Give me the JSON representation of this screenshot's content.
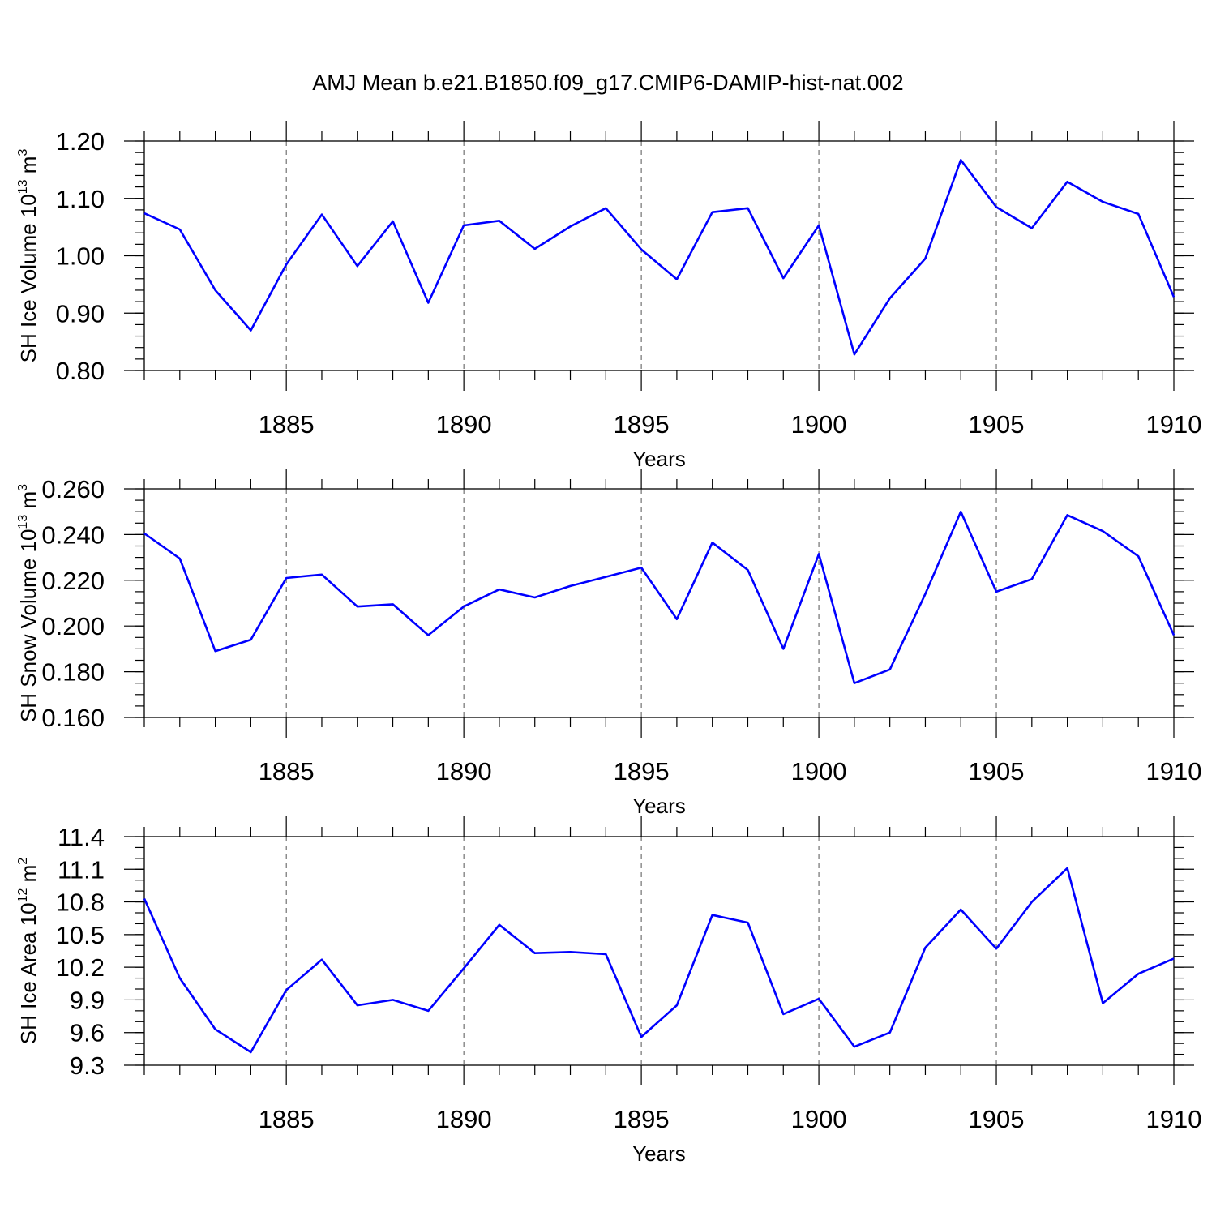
{
  "title": "AMJ Mean b.e21.B1850.f09_g17.CMIP6-DAMIP-hist-nat.002",
  "colors": {
    "line": "#0000ff"
  },
  "chart_data": [
    {
      "type": "line",
      "ylabel": {
        "text": "SH Ice Volume 10",
        "sup": "13",
        "unit": " m",
        "unit_sup": "3"
      },
      "xlabel": "Years",
      "xlim": [
        1881,
        1910
      ],
      "ylim": [
        0.8,
        1.2
      ],
      "yticks": [
        "0.80",
        "0.90",
        "1.00",
        "1.10",
        "1.20"
      ],
      "yminor": 0.02,
      "xticks": [
        "1885",
        "1890",
        "1895",
        "1900",
        "1905",
        "1910"
      ],
      "grid": "vertical-dashed-at-major-ticks",
      "x": [
        1881,
        1882,
        1883,
        1884,
        1885,
        1886,
        1887,
        1888,
        1889,
        1890,
        1891,
        1892,
        1893,
        1894,
        1895,
        1896,
        1897,
        1898,
        1899,
        1900,
        1901,
        1902,
        1903,
        1904,
        1905,
        1906,
        1907,
        1908,
        1909,
        1910
      ],
      "values": [
        1.074,
        1.046,
        0.94,
        0.87,
        0.985,
        1.072,
        0.982,
        1.06,
        0.918,
        1.053,
        1.061,
        1.012,
        1.051,
        1.083,
        1.011,
        0.959,
        1.076,
        1.083,
        0.961,
        1.053,
        0.828,
        0.926,
        0.995,
        1.167,
        1.085,
        1.048,
        1.129,
        1.094,
        1.073,
        0.928
      ]
    },
    {
      "type": "line",
      "ylabel": {
        "text": "SH Snow Volume 10",
        "sup": "13",
        "unit": " m",
        "unit_sup": "3"
      },
      "xlabel": "Years",
      "xlim": [
        1881,
        1910
      ],
      "ylim": [
        0.16,
        0.26
      ],
      "yticks": [
        "0.160",
        "0.180",
        "0.200",
        "0.220",
        "0.240",
        "0.260"
      ],
      "yminor": 0.005,
      "xticks": [
        "1885",
        "1890",
        "1895",
        "1900",
        "1905",
        "1910"
      ],
      "grid": "vertical-dashed-at-major-ticks",
      "x": [
        1881,
        1882,
        1883,
        1884,
        1885,
        1886,
        1887,
        1888,
        1889,
        1890,
        1891,
        1892,
        1893,
        1894,
        1895,
        1896,
        1897,
        1898,
        1899,
        1900,
        1901,
        1902,
        1903,
        1904,
        1905,
        1906,
        1907,
        1908,
        1909,
        1910
      ],
      "values": [
        0.2405,
        0.2295,
        0.189,
        0.194,
        0.221,
        0.2225,
        0.2085,
        0.2095,
        0.196,
        0.2085,
        0.216,
        0.2125,
        0.2175,
        0.2215,
        0.2255,
        0.203,
        0.2365,
        0.2245,
        0.19,
        0.2315,
        0.175,
        0.181,
        0.214,
        0.25,
        0.215,
        0.2205,
        0.2485,
        0.2415,
        0.2305,
        0.196
      ]
    },
    {
      "type": "line",
      "ylabel": {
        "text": "SH Ice Area 10",
        "sup": "12",
        "unit": " m",
        "unit_sup": "2"
      },
      "xlabel": "Years",
      "xlim": [
        1881,
        1910
      ],
      "ylim": [
        9.3,
        11.4
      ],
      "yticks": [
        "9.3",
        "9.6",
        "9.9",
        "10.2",
        "10.5",
        "10.8",
        "11.1",
        "11.4"
      ],
      "yminor": 0.1,
      "xticks": [
        "1885",
        "1890",
        "1895",
        "1900",
        "1905",
        "1910"
      ],
      "grid": "vertical-dashed-at-major-ticks",
      "x": [
        1881,
        1882,
        1883,
        1884,
        1885,
        1886,
        1887,
        1888,
        1889,
        1890,
        1891,
        1892,
        1893,
        1894,
        1895,
        1896,
        1897,
        1898,
        1899,
        1900,
        1901,
        1902,
        1903,
        1904,
        1905,
        1906,
        1907,
        1908,
        1909,
        1910
      ],
      "values": [
        10.83,
        10.1,
        9.63,
        9.42,
        9.99,
        10.27,
        9.85,
        9.9,
        9.8,
        10.19,
        10.59,
        10.33,
        10.34,
        10.32,
        9.56,
        9.85,
        10.68,
        10.61,
        9.77,
        9.91,
        9.47,
        9.6,
        10.38,
        10.73,
        10.37,
        10.8,
        11.11,
        9.87,
        10.14,
        10.28
      ]
    }
  ]
}
